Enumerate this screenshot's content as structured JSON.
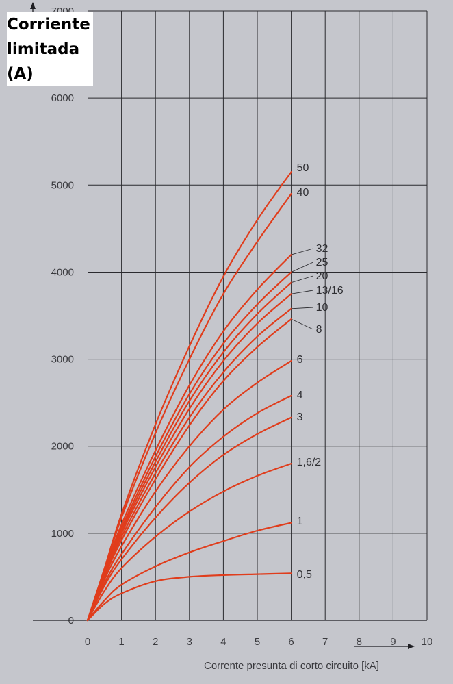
{
  "chart_data": {
    "type": "line",
    "ylabel_lines": [
      "Corriente",
      "limitada",
      "(A)"
    ],
    "xlabel": "Corrente presunta di corto circuito [kA]",
    "xlim": [
      0,
      10
    ],
    "ylim": [
      0,
      7000
    ],
    "x_ticks": [
      "0",
      "1",
      "2",
      "3",
      "4",
      "5",
      "6",
      "7",
      "8",
      "9",
      "10"
    ],
    "y_ticks": [
      "0",
      "1000",
      "2000",
      "3000",
      "4000",
      "5000",
      "6000",
      "7000"
    ],
    "grid": true,
    "series": [
      {
        "name": "50",
        "points": [
          [
            0,
            0
          ],
          [
            0.5,
            600
          ],
          [
            1,
            1220
          ],
          [
            2,
            2250
          ],
          [
            3,
            3150
          ],
          [
            4,
            3950
          ],
          [
            5,
            4600
          ],
          [
            6,
            5150
          ]
        ]
      },
      {
        "name": "40",
        "points": [
          [
            0,
            0
          ],
          [
            0.5,
            590
          ],
          [
            1,
            1180
          ],
          [
            2,
            2150
          ],
          [
            3,
            3000
          ],
          [
            4,
            3750
          ],
          [
            5,
            4350
          ],
          [
            6,
            4900
          ]
        ]
      },
      {
        "name": "32",
        "points": [
          [
            0,
            0
          ],
          [
            0.5,
            570
          ],
          [
            1,
            1100
          ],
          [
            2,
            1950
          ],
          [
            3,
            2700
          ],
          [
            4,
            3320
          ],
          [
            5,
            3800
          ],
          [
            6,
            4200
          ]
        ]
      },
      {
        "name": "25",
        "points": [
          [
            0,
            0
          ],
          [
            0.5,
            560
          ],
          [
            1,
            1060
          ],
          [
            2,
            1880
          ],
          [
            3,
            2600
          ],
          [
            4,
            3180
          ],
          [
            5,
            3630
          ],
          [
            6,
            4000
          ]
        ]
      },
      {
        "name": "20",
        "points": [
          [
            0,
            0
          ],
          [
            0.5,
            550
          ],
          [
            1,
            1030
          ],
          [
            2,
            1820
          ],
          [
            3,
            2520
          ],
          [
            4,
            3080
          ],
          [
            5,
            3520
          ],
          [
            6,
            3880
          ]
        ]
      },
      {
        "name": "13/16",
        "points": [
          [
            0,
            0
          ],
          [
            0.5,
            540
          ],
          [
            1,
            1000
          ],
          [
            2,
            1760
          ],
          [
            3,
            2430
          ],
          [
            4,
            2980
          ],
          [
            5,
            3410
          ],
          [
            6,
            3750
          ]
        ]
      },
      {
        "name": "10",
        "points": [
          [
            0,
            0
          ],
          [
            0.5,
            520
          ],
          [
            1,
            960
          ],
          [
            2,
            1690
          ],
          [
            3,
            2330
          ],
          [
            4,
            2850
          ],
          [
            5,
            3260
          ],
          [
            6,
            3580
          ]
        ]
      },
      {
        "name": "8",
        "points": [
          [
            0,
            0
          ],
          [
            0.5,
            500
          ],
          [
            1,
            920
          ],
          [
            2,
            1620
          ],
          [
            3,
            2240
          ],
          [
            4,
            2750
          ],
          [
            5,
            3140
          ],
          [
            6,
            3460
          ]
        ]
      },
      {
        "name": "6",
        "points": [
          [
            0,
            0
          ],
          [
            0.5,
            470
          ],
          [
            1,
            850
          ],
          [
            2,
            1480
          ],
          [
            3,
            2000
          ],
          [
            4,
            2420
          ],
          [
            5,
            2730
          ],
          [
            6,
            2980
          ]
        ]
      },
      {
        "name": "4",
        "points": [
          [
            0,
            0
          ],
          [
            0.5,
            430
          ],
          [
            1,
            760
          ],
          [
            2,
            1300
          ],
          [
            3,
            1760
          ],
          [
            4,
            2110
          ],
          [
            5,
            2380
          ],
          [
            6,
            2580
          ]
        ]
      },
      {
        "name": "3",
        "points": [
          [
            0,
            0
          ],
          [
            0.5,
            400
          ],
          [
            1,
            700
          ],
          [
            2,
            1180
          ],
          [
            3,
            1580
          ],
          [
            4,
            1900
          ],
          [
            5,
            2140
          ],
          [
            6,
            2330
          ]
        ]
      },
      {
        "name": "1,6/2",
        "points": [
          [
            0,
            0
          ],
          [
            0.5,
            340
          ],
          [
            1,
            600
          ],
          [
            2,
            960
          ],
          [
            3,
            1250
          ],
          [
            4,
            1480
          ],
          [
            5,
            1660
          ],
          [
            6,
            1800
          ]
        ]
      },
      {
        "name": "1",
        "points": [
          [
            0,
            0
          ],
          [
            0.5,
            230
          ],
          [
            1,
            410
          ],
          [
            2,
            620
          ],
          [
            3,
            780
          ],
          [
            4,
            910
          ],
          [
            5,
            1030
          ],
          [
            6,
            1120
          ]
        ]
      },
      {
        "name": "0,5",
        "points": [
          [
            0,
            0
          ],
          [
            0.5,
            190
          ],
          [
            1,
            310
          ],
          [
            2,
            450
          ],
          [
            3,
            500
          ],
          [
            4,
            520
          ],
          [
            5,
            530
          ],
          [
            6,
            540
          ]
        ]
      }
    ],
    "colors": {
      "curve": "#e03d1c",
      "grid": "#2a2a2e",
      "background": "#c5c6cc"
    }
  }
}
